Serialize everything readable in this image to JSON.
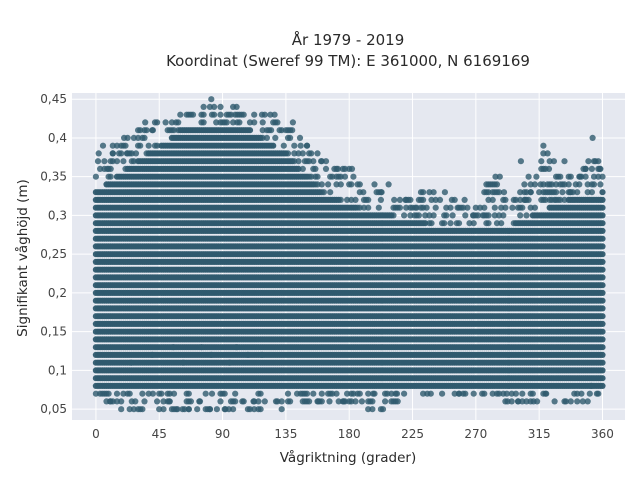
{
  "chart_data": {
    "type": "scatter",
    "title_line1": "År 1979 - 2019",
    "title_line2": "Koordinat (Sweref 99 TM): E 361000, N 6169169",
    "xlabel": "Vågriktning (grader)",
    "ylabel": "Signifikant våghöjd (m)",
    "xlim": [
      -17,
      376
    ],
    "ylim": [
      0.036,
      0.458
    ],
    "x_ticks": [
      0,
      45,
      90,
      135,
      180,
      225,
      270,
      315,
      360
    ],
    "x_tick_labels": [
      "0",
      "45",
      "90",
      "135",
      "180",
      "225",
      "270",
      "315",
      "360"
    ],
    "y_ticks": [
      0.05,
      0.1,
      0.15,
      0.2,
      0.25,
      0.3,
      0.35,
      0.4,
      0.45
    ],
    "y_tick_labels": [
      "0,05",
      "0,1",
      "0,15",
      "0,2",
      "0,25",
      "0,3",
      "0,35",
      "0,4",
      "0,45"
    ],
    "grid": true,
    "marker_color": "#2f5a6e",
    "background_color": "#e5e8f0",
    "y_resolution": 0.01,
    "x_range": [
      0,
      360
    ],
    "upper_envelope": [
      [
        0,
        0.38
      ],
      [
        10,
        0.39
      ],
      [
        20,
        0.4
      ],
      [
        30,
        0.41
      ],
      [
        40,
        0.42
      ],
      [
        50,
        0.42
      ],
      [
        60,
        0.43
      ],
      [
        70,
        0.44
      ],
      [
        80,
        0.45
      ],
      [
        90,
        0.44
      ],
      [
        100,
        0.44
      ],
      [
        110,
        0.43
      ],
      [
        120,
        0.43
      ],
      [
        130,
        0.42
      ],
      [
        140,
        0.41
      ],
      [
        150,
        0.4
      ],
      [
        160,
        0.38
      ],
      [
        170,
        0.36
      ],
      [
        180,
        0.36
      ],
      [
        190,
        0.34
      ],
      [
        200,
        0.33
      ],
      [
        210,
        0.33
      ],
      [
        220,
        0.32
      ],
      [
        230,
        0.33
      ],
      [
        240,
        0.33
      ],
      [
        250,
        0.32
      ],
      [
        260,
        0.32
      ],
      [
        270,
        0.31
      ],
      [
        280,
        0.35
      ],
      [
        290,
        0.33
      ],
      [
        300,
        0.33
      ],
      [
        310,
        0.36
      ],
      [
        320,
        0.39
      ],
      [
        330,
        0.36
      ],
      [
        340,
        0.35
      ],
      [
        350,
        0.37
      ],
      [
        360,
        0.37
      ]
    ],
    "lower_envelope": [
      [
        0,
        0.07
      ],
      [
        20,
        0.05
      ],
      [
        40,
        0.05
      ],
      [
        60,
        0.05
      ],
      [
        80,
        0.05
      ],
      [
        100,
        0.05
      ],
      [
        120,
        0.05
      ],
      [
        140,
        0.06
      ],
      [
        160,
        0.06
      ],
      [
        180,
        0.06
      ],
      [
        200,
        0.05
      ],
      [
        220,
        0.07
      ],
      [
        240,
        0.07
      ],
      [
        260,
        0.07
      ],
      [
        280,
        0.07
      ],
      [
        300,
        0.06
      ],
      [
        320,
        0.06
      ],
      [
        340,
        0.06
      ],
      [
        360,
        0.07
      ]
    ],
    "dense_upper": [
      [
        0,
        0.33
      ],
      [
        30,
        0.37
      ],
      [
        60,
        0.41
      ],
      [
        85,
        0.42
      ],
      [
        110,
        0.41
      ],
      [
        135,
        0.38
      ],
      [
        160,
        0.33
      ],
      [
        185,
        0.31
      ],
      [
        210,
        0.3
      ],
      [
        235,
        0.29
      ],
      [
        260,
        0.28
      ],
      [
        285,
        0.28
      ],
      [
        310,
        0.3
      ],
      [
        335,
        0.32
      ],
      [
        360,
        0.33
      ]
    ],
    "dense_lower": [
      [
        0,
        0.08
      ],
      [
        60,
        0.08
      ],
      [
        120,
        0.08
      ],
      [
        180,
        0.08
      ],
      [
        220,
        0.08
      ],
      [
        270,
        0.08
      ],
      [
        320,
        0.08
      ],
      [
        360,
        0.08
      ]
    ],
    "outliers": [
      [
        2,
        0.38
      ],
      [
        5,
        0.39
      ],
      [
        8,
        0.36
      ],
      [
        12,
        0.38
      ],
      [
        15,
        0.39
      ],
      [
        20,
        0.4
      ],
      [
        22,
        0.38
      ],
      [
        30,
        0.41
      ],
      [
        35,
        0.42
      ],
      [
        40,
        0.41
      ],
      [
        82,
        0.45
      ],
      [
        100,
        0.44
      ],
      [
        118,
        0.43
      ],
      [
        124,
        0.43
      ],
      [
        127,
        0.43
      ],
      [
        140,
        0.42
      ],
      [
        145,
        0.4
      ],
      [
        150,
        0.39
      ],
      [
        160,
        0.37
      ],
      [
        172,
        0.36
      ],
      [
        182,
        0.36
      ],
      [
        186,
        0.34
      ],
      [
        190,
        0.33
      ],
      [
        198,
        0.34
      ],
      [
        203,
        0.33
      ],
      [
        208,
        0.34
      ],
      [
        212,
        0.32
      ],
      [
        220,
        0.32
      ],
      [
        227,
        0.31
      ],
      [
        235,
        0.31
      ],
      [
        240,
        0.33
      ],
      [
        248,
        0.33
      ],
      [
        253,
        0.32
      ],
      [
        257,
        0.31
      ],
      [
        262,
        0.32
      ],
      [
        268,
        0.3
      ],
      [
        275,
        0.3
      ],
      [
        284,
        0.35
      ],
      [
        287,
        0.35
      ],
      [
        290,
        0.33
      ],
      [
        296,
        0.31
      ],
      [
        302,
        0.37
      ],
      [
        305,
        0.32
      ],
      [
        309,
        0.33
      ],
      [
        313,
        0.35
      ],
      [
        316,
        0.34
      ],
      [
        318,
        0.39
      ],
      [
        322,
        0.36
      ],
      [
        326,
        0.32
      ],
      [
        330,
        0.34
      ],
      [
        333,
        0.37
      ],
      [
        337,
        0.33
      ],
      [
        341,
        0.34
      ],
      [
        344,
        0.35
      ],
      [
        348,
        0.36
      ],
      [
        350,
        0.37
      ],
      [
        353,
        0.4
      ],
      [
        355,
        0.37
      ],
      [
        358,
        0.36
      ],
      [
        10,
        0.06
      ],
      [
        18,
        0.05
      ],
      [
        28,
        0.06
      ],
      [
        45,
        0.05
      ],
      [
        52,
        0.06
      ],
      [
        58,
        0.05
      ],
      [
        66,
        0.05
      ],
      [
        74,
        0.06
      ],
      [
        81,
        0.05
      ],
      [
        86,
        0.05
      ],
      [
        92,
        0.05
      ],
      [
        104,
        0.06
      ],
      [
        112,
        0.06
      ],
      [
        120,
        0.06
      ],
      [
        128,
        0.06
      ],
      [
        132,
        0.05
      ],
      [
        138,
        0.06
      ],
      [
        143,
        0.07
      ],
      [
        150,
        0.06
      ],
      [
        158,
        0.06
      ],
      [
        166,
        0.06
      ],
      [
        176,
        0.06
      ],
      [
        186,
        0.07
      ],
      [
        197,
        0.07
      ],
      [
        204,
        0.05
      ],
      [
        214,
        0.07
      ],
      [
        238,
        0.07
      ],
      [
        246,
        0.07
      ],
      [
        258,
        0.07
      ],
      [
        276,
        0.07
      ],
      [
        292,
        0.07
      ],
      [
        300,
        0.06
      ],
      [
        311,
        0.06
      ],
      [
        326,
        0.06
      ],
      [
        334,
        0.06
      ],
      [
        346,
        0.06
      ],
      [
        356,
        0.07
      ],
      [
        352,
        0.08
      ],
      [
        340,
        0.07
      ],
      [
        320,
        0.07
      ],
      [
        40,
        0.12
      ],
      [
        55,
        0.13
      ],
      [
        62,
        0.11
      ],
      [
        75,
        0.13
      ],
      [
        82,
        0.12
      ],
      [
        95,
        0.11
      ],
      [
        100,
        0.13
      ],
      [
        108,
        0.12
      ],
      [
        118,
        0.12
      ],
      [
        25,
        0.11
      ]
    ]
  }
}
